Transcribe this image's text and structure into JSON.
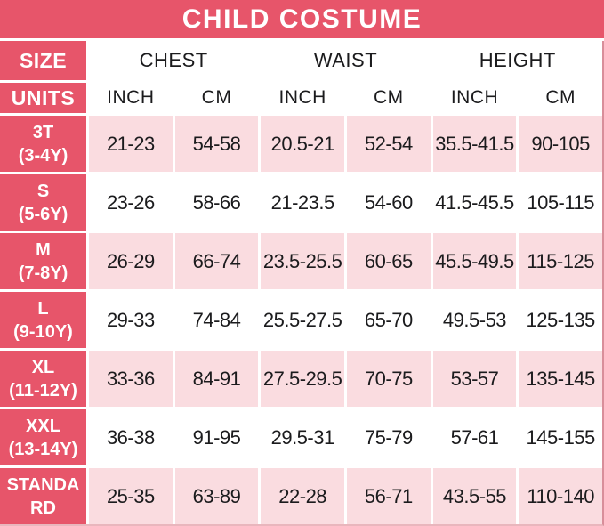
{
  "title": "CHILD COSTUME",
  "colors": {
    "red": "#e7556a",
    "pink": "#fadce0",
    "text_dark": "#1b1b1d",
    "border_pink": "#d98e9a",
    "border_pink_light": "#e9b6bd"
  },
  "header": {
    "size_label": "SIZE",
    "units_label": "UNITS",
    "groups": [
      {
        "label": "CHEST"
      },
      {
        "label": "WAIST"
      },
      {
        "label": "HEIGHT"
      }
    ],
    "units": [
      "INCH",
      "CM",
      "INCH",
      "CM",
      "INCH",
      "CM"
    ]
  },
  "table": {
    "rows": [
      {
        "size_lines": [
          "3T",
          "(3-4Y)"
        ],
        "values": [
          "21-23",
          "54-58",
          "20.5-21",
          "52-54",
          "35.5-41.5",
          "90-105"
        ]
      },
      {
        "size_lines": [
          "S",
          "(5-6Y)"
        ],
        "values": [
          "23-26",
          "58-66",
          "21-23.5",
          "54-60",
          "41.5-45.5",
          "105-115"
        ]
      },
      {
        "size_lines": [
          "M",
          "(7-8Y)"
        ],
        "values": [
          "26-29",
          "66-74",
          "23.5-25.5",
          "60-65",
          "45.5-49.5",
          "115-125"
        ]
      },
      {
        "size_lines": [
          "L",
          "(9-10Y)"
        ],
        "values": [
          "29-33",
          "74-84",
          "25.5-27.5",
          "65-70",
          "49.5-53",
          "125-135"
        ]
      },
      {
        "size_lines": [
          "XL",
          "(11-12Y)"
        ],
        "values": [
          "33-36",
          "84-91",
          "27.5-29.5",
          "70-75",
          "53-57",
          "135-145"
        ]
      },
      {
        "size_lines": [
          "XXL",
          "(13-14Y)"
        ],
        "values": [
          "36-38",
          "91-95",
          "29.5-31",
          "75-79",
          "57-61",
          "145-155"
        ]
      },
      {
        "size_lines": [
          "STANDA",
          "RD"
        ],
        "values": [
          "25-35",
          "63-89",
          "22-28",
          "56-71",
          "43.5-55",
          "110-140"
        ]
      }
    ]
  },
  "chart_data": {
    "type": "table",
    "title": "CHILD COSTUME",
    "columns": [
      "SIZE",
      "CHEST (INCH)",
      "CHEST (CM)",
      "WAIST (INCH)",
      "WAIST (CM)",
      "HEIGHT (INCH)",
      "HEIGHT (CM)"
    ],
    "rows": [
      [
        "3T (3-4Y)",
        "21-23",
        "54-58",
        "20.5-21",
        "52-54",
        "35.5-41.5",
        "90-105"
      ],
      [
        "S (5-6Y)",
        "23-26",
        "58-66",
        "21-23.5",
        "54-60",
        "41.5-45.5",
        "105-115"
      ],
      [
        "M (7-8Y)",
        "26-29",
        "66-74",
        "23.5-25.5",
        "60-65",
        "45.5-49.5",
        "115-125"
      ],
      [
        "L (9-10Y)",
        "29-33",
        "74-84",
        "25.5-27.5",
        "65-70",
        "49.5-53",
        "125-135"
      ],
      [
        "XL (11-12Y)",
        "33-36",
        "84-91",
        "27.5-29.5",
        "70-75",
        "53-57",
        "135-145"
      ],
      [
        "XXL (13-14Y)",
        "36-38",
        "91-95",
        "29.5-31",
        "75-79",
        "57-61",
        "145-155"
      ],
      [
        "STANDARD",
        "25-35",
        "63-89",
        "22-28",
        "56-71",
        "43.5-55",
        "110-140"
      ]
    ]
  }
}
